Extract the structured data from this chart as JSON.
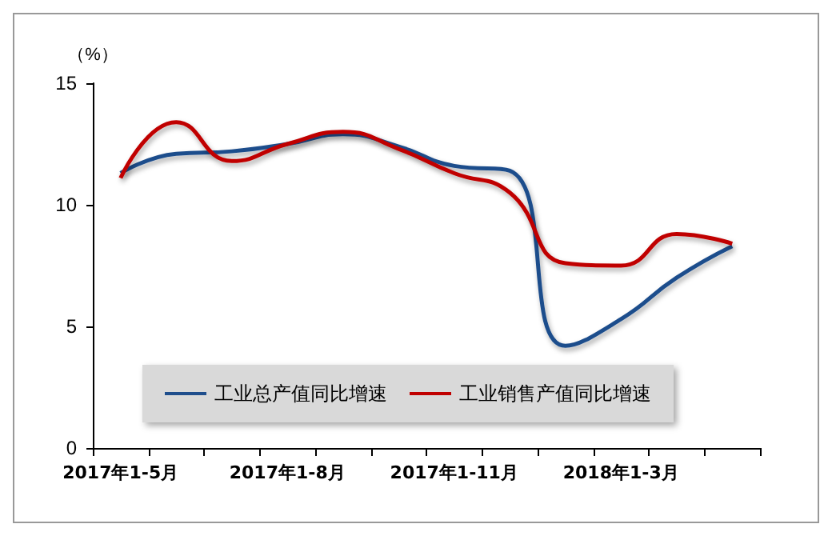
{
  "chart_data": {
    "type": "line",
    "ylabel": "（%）",
    "categories": [
      "2017年1-5月",
      null,
      null,
      "2017年1-8月",
      null,
      null,
      "2017年1-11月",
      null,
      null,
      "2018年1-3月",
      null,
      null
    ],
    "series": [
      {
        "name": "工业总产值同比增速",
        "color": "#1f4e8c",
        "values": [
          11.3,
          12.1,
          12.2,
          12.5,
          12.9,
          12.4,
          11.6,
          11.4,
          4.2,
          5.3,
          7.0,
          8.3
        ]
      },
      {
        "name": "工业销售产值同比增速",
        "color": "#c00000",
        "values": [
          11.1,
          13.4,
          11.8,
          12.5,
          13.0,
          12.3,
          11.3,
          10.5,
          7.6,
          7.5,
          8.8,
          8.4
        ]
      }
    ],
    "ylim": [
      0,
      15
    ],
    "yticks": [
      0,
      5,
      10,
      15
    ],
    "grid": false,
    "legend": "bottom left",
    "marker": "none",
    "line_style": "solid"
  }
}
